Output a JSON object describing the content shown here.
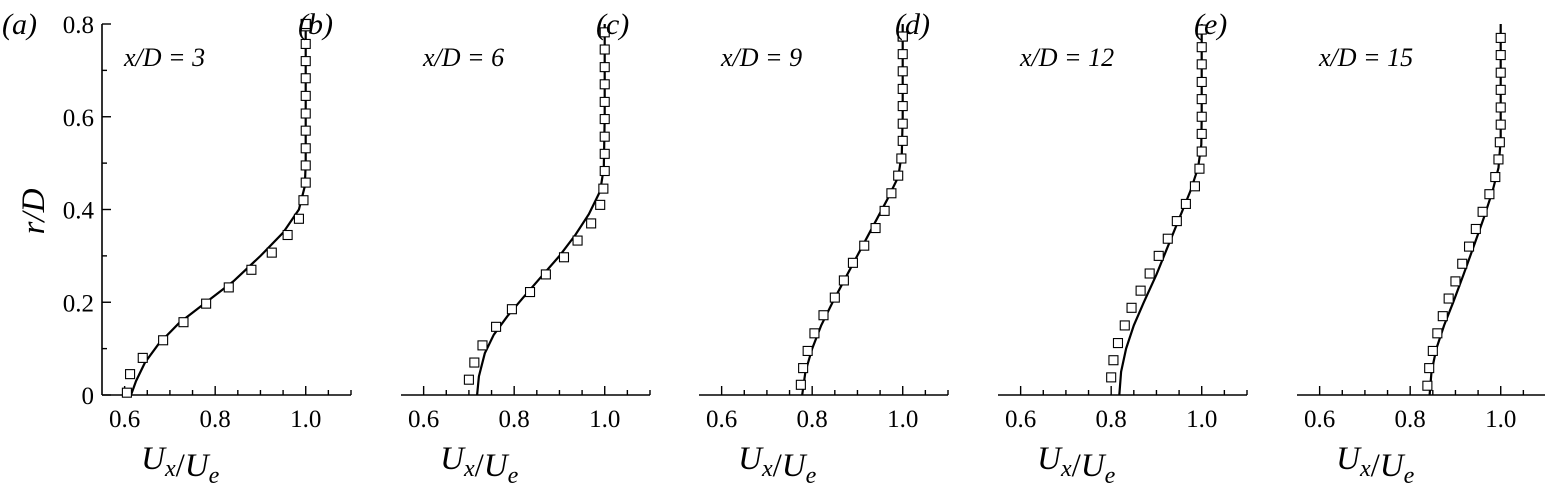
{
  "chart_data": [
    {
      "type": "line",
      "panel_label": "(a)",
      "annotation": "x/D = 3",
      "xlabel": "U_x/U_e",
      "ylabel": "r/D",
      "xlim": [
        0.55,
        1.1
      ],
      "ylim": [
        0,
        0.8
      ],
      "xticks": [
        "0.6",
        "0.8",
        "1.0"
      ],
      "yticks": [
        "0",
        "0.2",
        "0.4",
        "0.6",
        "0.8"
      ],
      "grid": false,
      "series": [
        {
          "kind": "line",
          "x": [
            0.614,
            0.625,
            0.645,
            0.675,
            0.72,
            0.78,
            0.84,
            0.9,
            0.95,
            0.985,
            0.998,
            1.0,
            1.0,
            1.0
          ],
          "y": [
            0.0,
            0.03,
            0.07,
            0.11,
            0.155,
            0.2,
            0.245,
            0.3,
            0.35,
            0.4,
            0.45,
            0.5,
            0.65,
            0.8
          ]
        },
        {
          "kind": "scatter",
          "x": [
            0.605,
            0.612,
            0.64,
            0.685,
            0.73,
            0.78,
            0.83,
            0.88,
            0.925,
            0.96,
            0.985,
            0.995,
            1.0,
            1.0,
            1.0,
            1.0,
            1.0,
            1.0,
            1.0,
            1.0,
            1.0,
            1.0,
            1.0,
            1.0,
            1.0
          ],
          "y": [
            0.005,
            0.045,
            0.08,
            0.118,
            0.157,
            0.197,
            0.232,
            0.27,
            0.307,
            0.345,
            0.38,
            0.42,
            0.458,
            0.495,
            0.532,
            0.57,
            0.607,
            0.645,
            0.683,
            0.72,
            0.757,
            0.795,
            0.8,
            0.8,
            0.8
          ]
        }
      ]
    },
    {
      "type": "line",
      "panel_label": "(b)",
      "annotation": "x/D = 6",
      "xlabel": "U_x/U_e",
      "xlim": [
        0.55,
        1.1
      ],
      "ylim": [
        0,
        0.8
      ],
      "xticks": [
        "0.6",
        "0.8",
        "1.0"
      ],
      "grid": false,
      "series": [
        {
          "kind": "line",
          "x": [
            0.718,
            0.722,
            0.735,
            0.755,
            0.785,
            0.82,
            0.86,
            0.9,
            0.935,
            0.965,
            0.99,
            0.998,
            1.0,
            1.0
          ],
          "y": [
            0.0,
            0.04,
            0.09,
            0.13,
            0.17,
            0.21,
            0.255,
            0.3,
            0.345,
            0.39,
            0.44,
            0.49,
            0.6,
            0.8
          ]
        },
        {
          "kind": "scatter",
          "x": [
            0.7,
            0.712,
            0.73,
            0.76,
            0.795,
            0.835,
            0.87,
            0.91,
            0.94,
            0.97,
            0.99,
            0.997,
            1.0,
            1.0,
            1.0,
            1.0,
            1.0,
            1.0,
            1.0,
            1.0,
            1.0
          ],
          "y": [
            0.033,
            0.07,
            0.107,
            0.147,
            0.185,
            0.222,
            0.26,
            0.297,
            0.333,
            0.37,
            0.41,
            0.445,
            0.483,
            0.52,
            0.557,
            0.595,
            0.632,
            0.67,
            0.707,
            0.745,
            0.782
          ]
        }
      ]
    },
    {
      "type": "line",
      "panel_label": "(c)",
      "annotation": "x/D = 9",
      "xlabel": "U_x/U_e",
      "xlim": [
        0.55,
        1.1
      ],
      "ylim": [
        0,
        0.8
      ],
      "xticks": [
        "0.6",
        "0.8",
        "1.0"
      ],
      "grid": false,
      "series": [
        {
          "kind": "line",
          "x": [
            0.778,
            0.785,
            0.8,
            0.82,
            0.845,
            0.875,
            0.905,
            0.935,
            0.965,
            0.99,
            0.998,
            1.0,
            1.0
          ],
          "y": [
            0.0,
            0.05,
            0.1,
            0.15,
            0.2,
            0.255,
            0.31,
            0.365,
            0.42,
            0.47,
            0.52,
            0.6,
            0.8
          ]
        },
        {
          "kind": "scatter",
          "x": [
            0.775,
            0.78,
            0.79,
            0.805,
            0.825,
            0.85,
            0.87,
            0.89,
            0.915,
            0.94,
            0.96,
            0.975,
            0.99,
            0.997,
            1.0,
            1.0,
            1.0,
            1.0,
            1.0,
            1.0,
            1.0,
            1.0,
            1.0
          ],
          "y": [
            0.022,
            0.058,
            0.095,
            0.133,
            0.172,
            0.21,
            0.247,
            0.285,
            0.322,
            0.36,
            0.397,
            0.435,
            0.473,
            0.51,
            0.548,
            0.585,
            0.623,
            0.66,
            0.698,
            0.735,
            0.773,
            0.773,
            0.773
          ]
        }
      ]
    },
    {
      "type": "line",
      "panel_label": "(d)",
      "annotation": "x/D = 12",
      "xlabel": "U_x/U_e",
      "xlim": [
        0.55,
        1.1
      ],
      "ylim": [
        0,
        0.8
      ],
      "xticks": [
        "0.6",
        "0.8",
        "1.0"
      ],
      "grid": false,
      "series": [
        {
          "kind": "line",
          "x": [
            0.818,
            0.822,
            0.833,
            0.85,
            0.872,
            0.9,
            0.925,
            0.95,
            0.975,
            0.992,
            0.999,
            1.0,
            1.0
          ],
          "y": [
            0.0,
            0.05,
            0.1,
            0.15,
            0.2,
            0.26,
            0.32,
            0.38,
            0.44,
            0.49,
            0.54,
            0.6,
            0.8
          ]
        },
        {
          "kind": "scatter",
          "x": [
            0.8,
            0.805,
            0.815,
            0.83,
            0.845,
            0.865,
            0.885,
            0.905,
            0.925,
            0.945,
            0.965,
            0.985,
            0.995,
            1.0,
            1.0,
            1.0,
            1.0,
            1.0,
            1.0,
            1.0,
            1.0
          ],
          "y": [
            0.038,
            0.075,
            0.112,
            0.15,
            0.188,
            0.225,
            0.262,
            0.3,
            0.337,
            0.375,
            0.412,
            0.45,
            0.488,
            0.525,
            0.563,
            0.6,
            0.638,
            0.675,
            0.713,
            0.75,
            0.788
          ]
        }
      ]
    },
    {
      "type": "line",
      "panel_label": "(e)",
      "annotation": "x/D = 15",
      "xlabel": "U_x/U_e",
      "xlim": [
        0.55,
        1.1
      ],
      "ylim": [
        0,
        0.8
      ],
      "xticks": [
        "0.6",
        "0.8",
        "1.0"
      ],
      "grid": false,
      "series": [
        {
          "kind": "line",
          "x": [
            0.843,
            0.847,
            0.858,
            0.875,
            0.895,
            0.918,
            0.94,
            0.962,
            0.982,
            0.995,
            1.0,
            1.0
          ],
          "y": [
            0.0,
            0.05,
            0.1,
            0.15,
            0.2,
            0.26,
            0.32,
            0.38,
            0.44,
            0.49,
            0.55,
            0.8
          ]
        },
        {
          "kind": "scatter",
          "x": [
            0.838,
            0.842,
            0.85,
            0.86,
            0.872,
            0.885,
            0.9,
            0.915,
            0.93,
            0.945,
            0.96,
            0.975,
            0.988,
            0.995,
            0.998,
            1.0,
            1.0,
            1.0,
            1.0,
            1.0,
            1.0
          ],
          "y": [
            0.02,
            0.058,
            0.095,
            0.133,
            0.17,
            0.208,
            0.245,
            0.283,
            0.32,
            0.358,
            0.395,
            0.433,
            0.47,
            0.508,
            0.545,
            0.583,
            0.62,
            0.658,
            0.695,
            0.733,
            0.77
          ]
        }
      ]
    }
  ]
}
